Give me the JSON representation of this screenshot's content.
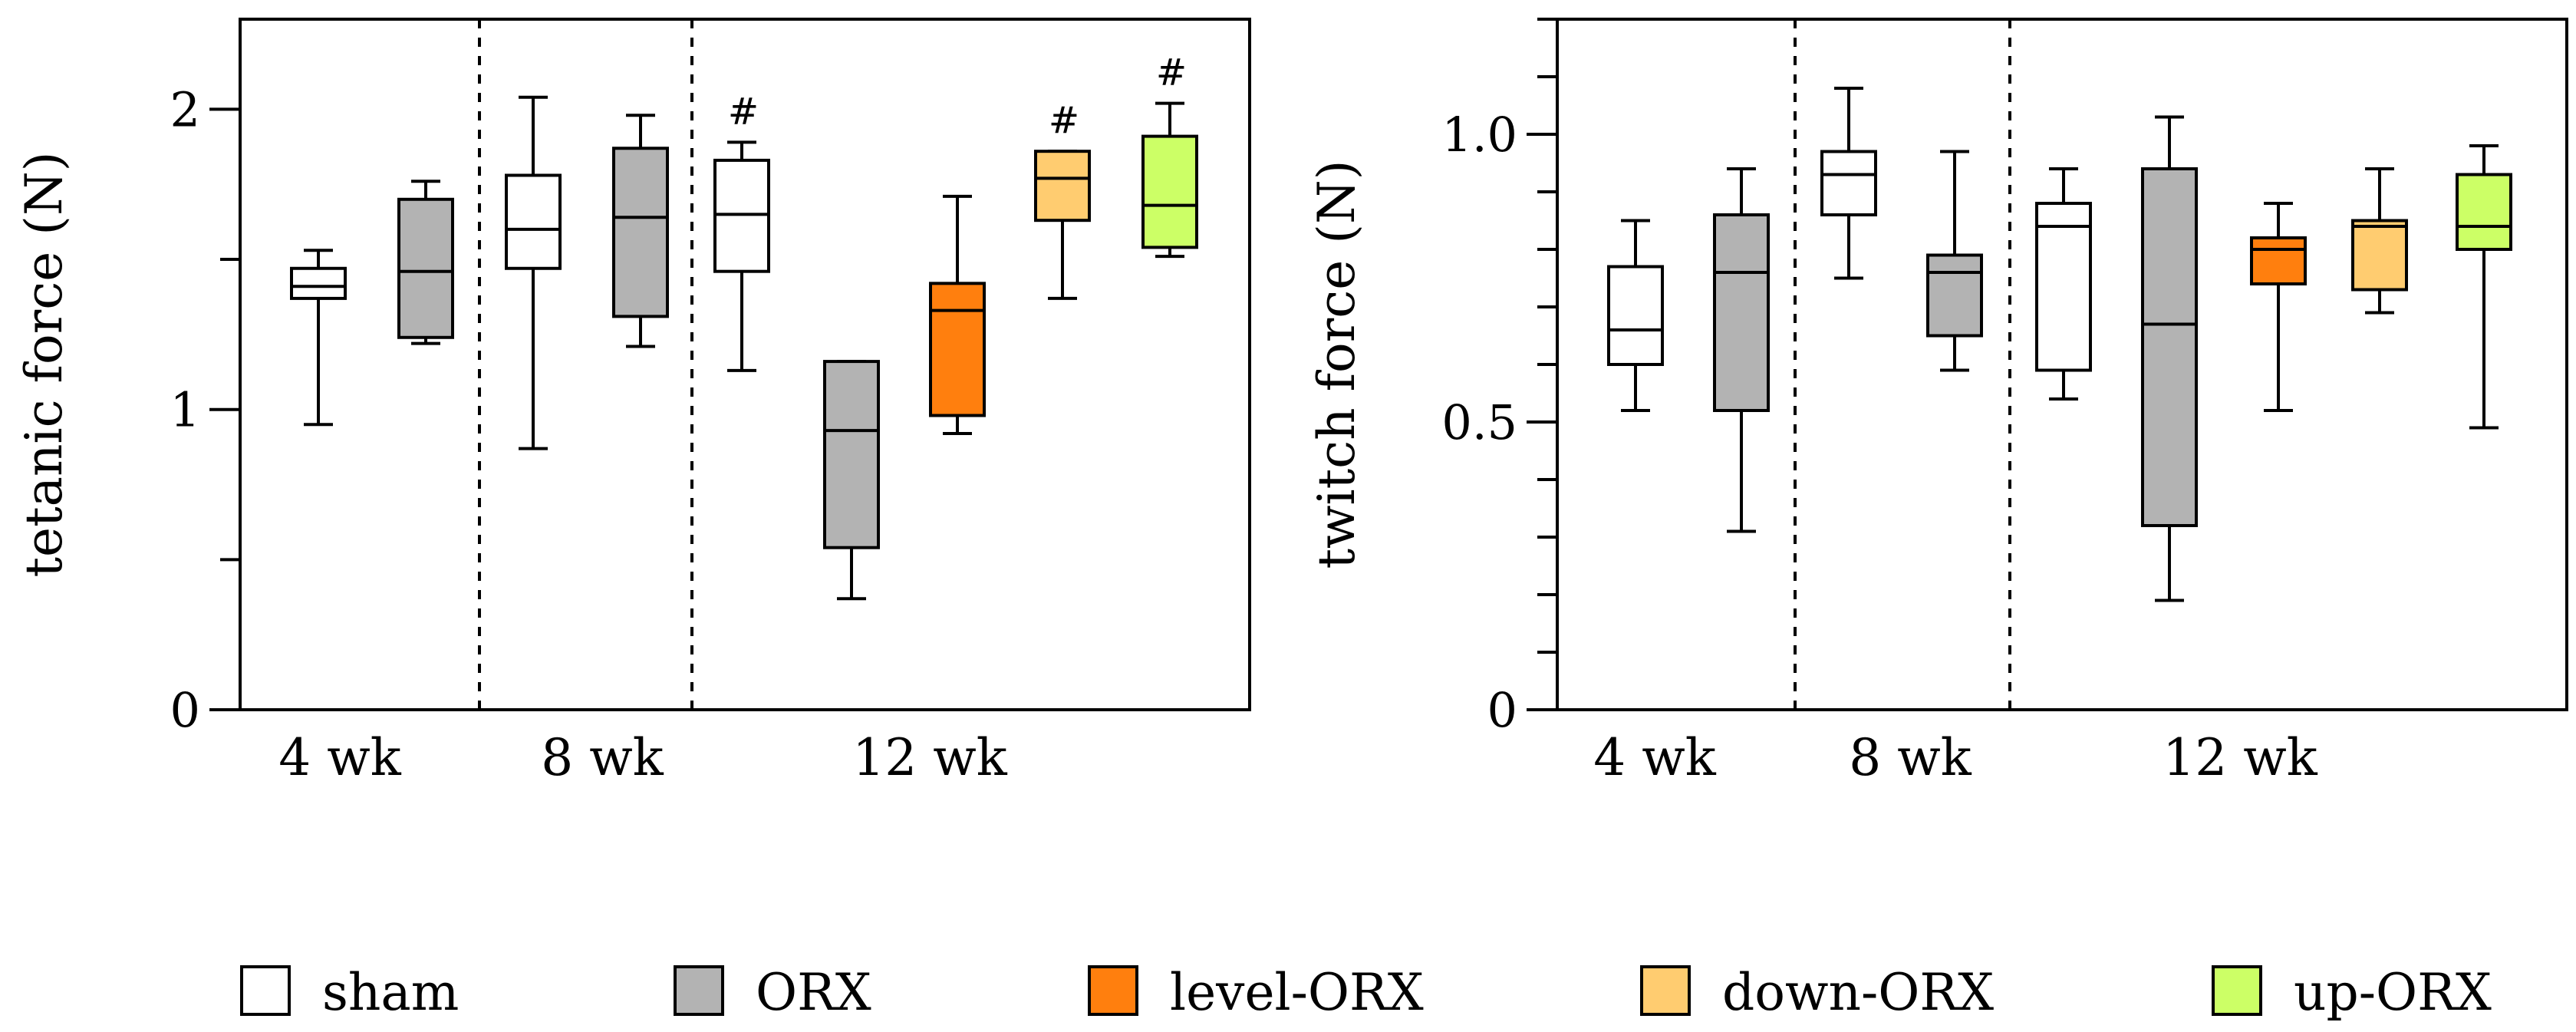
{
  "colors": {
    "sham": "#ffffff",
    "ORX": "#b3b3b3",
    "level-ORX": "#ff7f0e",
    "down-ORX": "#ffcc70",
    "up-ORX": "#ccff66",
    "stroke": "#000000"
  },
  "legend": {
    "items": [
      {
        "key": "sham",
        "label": "sham"
      },
      {
        "key": "ORX",
        "label": "ORX"
      },
      {
        "key": "level-ORX",
        "label": "level-ORX"
      },
      {
        "key": "down-ORX",
        "label": "down-ORX"
      },
      {
        "key": "up-ORX",
        "label": "up-ORX"
      }
    ]
  },
  "chart_data": [
    {
      "type": "box",
      "title": "",
      "ylabel": "tetanic force (N)",
      "xlabel": "",
      "ylim": [
        0,
        2.3
      ],
      "yticks_major": [
        0,
        1,
        2
      ],
      "ytick_labels": [
        "0",
        "1",
        "2"
      ],
      "yticks_minor": [
        0.5,
        1.5
      ],
      "groups": [
        "4 wk",
        "8 wk",
        "12 wk"
      ],
      "boxes": [
        {
          "group": "4 wk",
          "series": "sham",
          "min": 0.95,
          "q1": 1.37,
          "median": 1.41,
          "q3": 1.47,
          "max": 1.53,
          "sig": ""
        },
        {
          "group": "4 wk",
          "series": "ORX",
          "min": 1.22,
          "q1": 1.24,
          "median": 1.46,
          "q3": 1.7,
          "max": 1.76,
          "sig": ""
        },
        {
          "group": "8 wk",
          "series": "sham",
          "min": 0.87,
          "q1": 1.47,
          "median": 1.6,
          "q3": 1.78,
          "max": 2.04,
          "sig": ""
        },
        {
          "group": "8 wk",
          "series": "ORX",
          "min": 1.21,
          "q1": 1.31,
          "median": 1.64,
          "q3": 1.87,
          "max": 1.98,
          "sig": ""
        },
        {
          "group": "12 wk",
          "series": "sham",
          "min": 1.13,
          "q1": 1.46,
          "median": 1.65,
          "q3": 1.83,
          "max": 1.89,
          "sig": "#"
        },
        {
          "group": "12 wk",
          "series": "ORX",
          "min": 0.37,
          "q1": 0.54,
          "median": 0.93,
          "q3": 1.16,
          "max": 1.16,
          "sig": ""
        },
        {
          "group": "12 wk",
          "series": "level-ORX",
          "min": 0.92,
          "q1": 0.98,
          "median": 1.33,
          "q3": 1.42,
          "max": 1.71,
          "sig": ""
        },
        {
          "group": "12 wk",
          "series": "down-ORX",
          "min": 1.37,
          "q1": 1.63,
          "median": 1.77,
          "q3": 1.86,
          "max": 1.86,
          "sig": "#"
        },
        {
          "group": "12 wk",
          "series": "up-ORX",
          "min": 1.51,
          "q1": 1.54,
          "median": 1.68,
          "q3": 1.91,
          "max": 2.02,
          "sig": "#"
        }
      ]
    },
    {
      "type": "box",
      "title": "",
      "ylabel": "twitch force (N)",
      "xlabel": "",
      "ylim": [
        0,
        1.2
      ],
      "yticks_major": [
        0,
        0.5,
        1.0
      ],
      "ytick_labels": [
        "0",
        "0.5",
        "1.0"
      ],
      "yticks_minor": [
        0.1,
        0.2,
        0.3,
        0.4,
        0.6,
        0.7,
        0.8,
        0.9,
        1.1,
        1.2
      ],
      "groups": [
        "4 wk",
        "8 wk",
        "12 wk"
      ],
      "boxes": [
        {
          "group": "4 wk",
          "series": "sham",
          "min": 0.52,
          "q1": 0.6,
          "median": 0.66,
          "q3": 0.77,
          "max": 0.85,
          "sig": ""
        },
        {
          "group": "4 wk",
          "series": "ORX",
          "min": 0.31,
          "q1": 0.52,
          "median": 0.76,
          "q3": 0.86,
          "max": 0.94,
          "sig": ""
        },
        {
          "group": "8 wk",
          "series": "sham",
          "min": 0.75,
          "q1": 0.86,
          "median": 0.93,
          "q3": 0.97,
          "max": 1.08,
          "sig": ""
        },
        {
          "group": "8 wk",
          "series": "ORX",
          "min": 0.59,
          "q1": 0.65,
          "median": 0.76,
          "q3": 0.79,
          "max": 0.97,
          "sig": ""
        },
        {
          "group": "12 wk",
          "series": "sham",
          "min": 0.54,
          "q1": 0.59,
          "median": 0.84,
          "q3": 0.88,
          "max": 0.94,
          "sig": ""
        },
        {
          "group": "12 wk",
          "series": "ORX",
          "min": 0.19,
          "q1": 0.32,
          "median": 0.67,
          "q3": 0.94,
          "max": 1.03,
          "sig": ""
        },
        {
          "group": "12 wk",
          "series": "level-ORX",
          "min": 0.52,
          "q1": 0.74,
          "median": 0.8,
          "q3": 0.82,
          "max": 0.88,
          "sig": ""
        },
        {
          "group": "12 wk",
          "series": "down-ORX",
          "min": 0.69,
          "q1": 0.73,
          "median": 0.84,
          "q3": 0.85,
          "max": 0.94,
          "sig": ""
        },
        {
          "group": "12 wk",
          "series": "up-ORX",
          "min": 0.49,
          "q1": 0.8,
          "median": 0.84,
          "q3": 0.93,
          "max": 0.98,
          "sig": ""
        }
      ]
    }
  ]
}
